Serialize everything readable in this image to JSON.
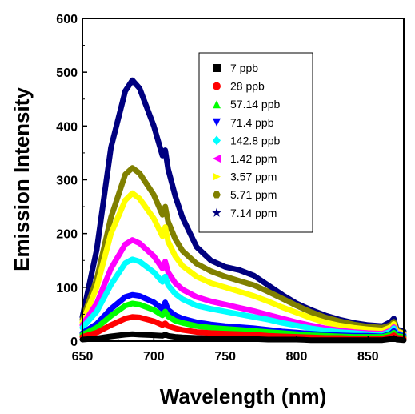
{
  "chart_data": {
    "type": "scatter",
    "title": "",
    "xlabel": "Wavelength (nm)",
    "ylabel": "Emission Intensity",
    "xlim": [
      650,
      875
    ],
    "ylim": [
      0,
      600
    ],
    "xticks": [
      650,
      700,
      750,
      800,
      850
    ],
    "yticks": [
      0,
      100,
      200,
      300,
      400,
      500,
      600
    ],
    "grid": false,
    "legend_position": "top-right",
    "x": [
      650,
      660,
      670,
      680,
      685,
      690,
      700,
      706,
      708,
      710,
      715,
      720,
      730,
      740,
      750,
      760,
      770,
      780,
      790,
      800,
      810,
      820,
      830,
      840,
      850,
      860,
      866,
      868,
      870,
      875
    ],
    "series": [
      {
        "name": "7 ppb",
        "color": "#000000",
        "marker": "square",
        "values": [
          3,
          5,
          9,
          12,
          13,
          12,
          11,
          10,
          12,
          10,
          8,
          7,
          6,
          5,
          5,
          4,
          4,
          3,
          3,
          3,
          2,
          2,
          2,
          2,
          2,
          2,
          4,
          6,
          3,
          2
        ]
      },
      {
        "name": "28 ppb",
        "color": "#ff0000",
        "marker": "circle",
        "values": [
          8,
          16,
          30,
          42,
          45,
          44,
          37,
          30,
          33,
          28,
          24,
          21,
          17,
          15,
          14,
          13,
          12,
          10,
          9,
          8,
          7,
          6,
          6,
          5,
          5,
          5,
          8,
          11,
          7,
          5
        ]
      },
      {
        "name": "57.14 ppb",
        "color": "#00ff00",
        "marker": "triangle-up",
        "values": [
          12,
          25,
          47,
          66,
          70,
          68,
          58,
          48,
          55,
          46,
          38,
          34,
          28,
          25,
          23,
          21,
          19,
          17,
          15,
          13,
          11,
          10,
          9,
          8,
          8,
          8,
          12,
          16,
          10,
          8
        ]
      },
      {
        "name": "71.4 ppb",
        "color": "#0000ff",
        "marker": "triangle-down",
        "values": [
          15,
          32,
          60,
          82,
          86,
          84,
          72,
          60,
          72,
          58,
          48,
          42,
          35,
          31,
          28,
          26,
          24,
          21,
          18,
          16,
          14,
          12,
          11,
          10,
          10,
          9,
          14,
          19,
          12,
          10
        ]
      },
      {
        "name": "142.8 ppb",
        "color": "#00ffff",
        "marker": "diamond",
        "values": [
          25,
          55,
          105,
          145,
          152,
          148,
          128,
          110,
          120,
          104,
          88,
          78,
          66,
          60,
          55,
          50,
          45,
          40,
          34,
          29,
          24,
          20,
          17,
          15,
          13,
          12,
          18,
          24,
          14,
          11
        ]
      },
      {
        "name": "1.42 ppm",
        "color": "#ff00ff",
        "marker": "triangle-left",
        "values": [
          30,
          70,
          135,
          180,
          188,
          182,
          158,
          135,
          148,
          128,
          108,
          96,
          82,
          74,
          68,
          62,
          56,
          49,
          42,
          35,
          29,
          24,
          20,
          17,
          15,
          14,
          20,
          26,
          15,
          12
        ]
      },
      {
        "name": "3.57 ppm",
        "color": "#ffff00",
        "marker": "triangle-right",
        "values": [
          35,
          100,
          200,
          262,
          275,
          265,
          228,
          195,
          212,
          185,
          158,
          140,
          120,
          108,
          100,
          92,
          84,
          74,
          63,
          53,
          43,
          35,
          29,
          25,
          22,
          20,
          26,
          32,
          18,
          14
        ]
      },
      {
        "name": "5.71 ppm",
        "color": "#808000",
        "marker": "hexagon",
        "values": [
          40,
          115,
          230,
          310,
          322,
          312,
          272,
          235,
          250,
          222,
          190,
          168,
          144,
          130,
          120,
          112,
          104,
          92,
          79,
          66,
          54,
          44,
          37,
          31,
          27,
          25,
          30,
          36,
          20,
          15
        ]
      },
      {
        "name": "7.14 ppm",
        "color": "#000080",
        "marker": "star",
        "values": [
          45,
          170,
          360,
          465,
          485,
          470,
          400,
          345,
          355,
          320,
          270,
          230,
          175,
          150,
          138,
          132,
          122,
          104,
          86,
          70,
          58,
          48,
          40,
          34,
          30,
          28,
          36,
          42,
          22,
          18
        ]
      }
    ]
  }
}
